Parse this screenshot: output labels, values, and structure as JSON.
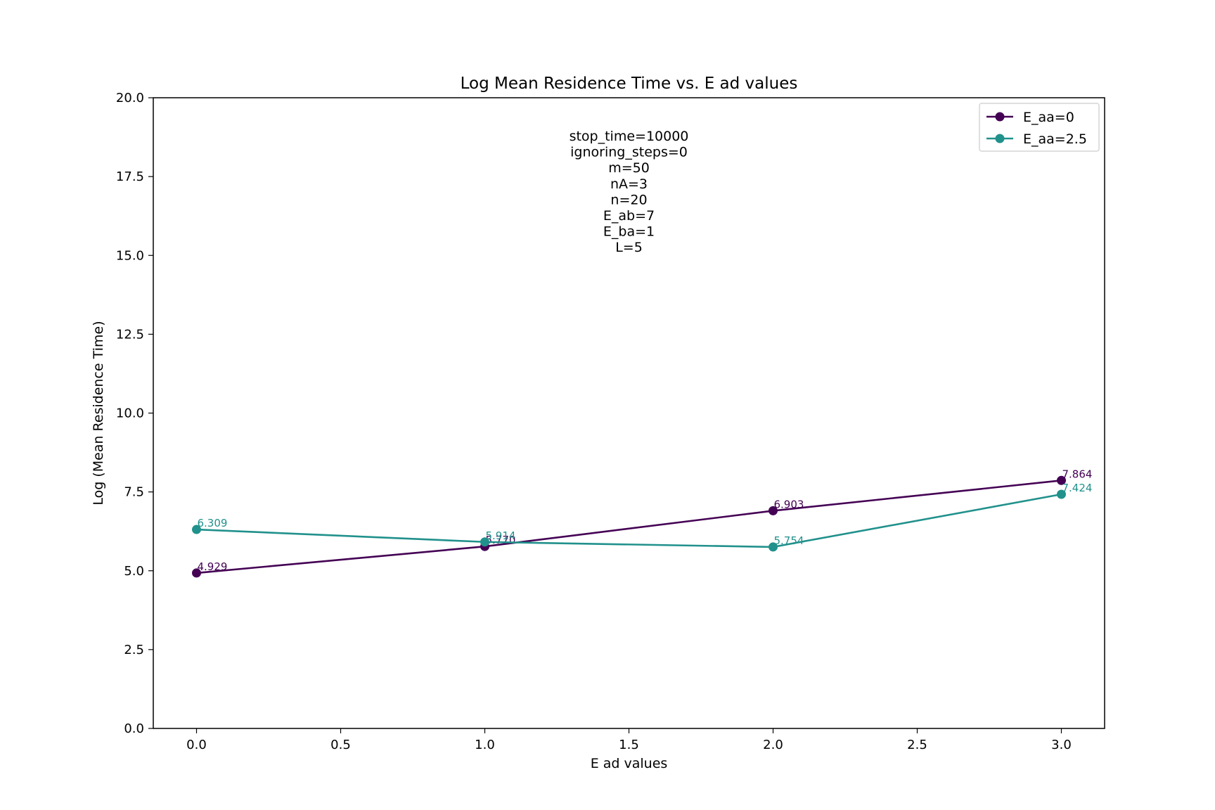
{
  "chart_data": {
    "type": "line",
    "title": "Log Mean Residence Time vs. E ad values",
    "xlabel": "E ad values",
    "ylabel": "Log (Mean Residence Time)",
    "xlim": [
      -0.15,
      3.15
    ],
    "ylim": [
      0,
      20
    ],
    "xticks": [
      0.0,
      0.5,
      1.0,
      1.5,
      2.0,
      2.5,
      3.0
    ],
    "xtick_labels": [
      "0.0",
      "0.5",
      "1.0",
      "1.5",
      "2.0",
      "2.5",
      "3.0"
    ],
    "yticks": [
      0.0,
      2.5,
      5.0,
      7.5,
      10.0,
      12.5,
      15.0,
      17.5,
      20.0
    ],
    "ytick_labels": [
      "0.0",
      "2.5",
      "5.0",
      "7.5",
      "10.0",
      "12.5",
      "15.0",
      "17.5",
      "20.0"
    ],
    "grid": false,
    "legend_position": "top-right",
    "annotation_lines": [
      "stop_time=10000",
      "ignoring_steps=0",
      "m=50",
      "nA=3",
      "n=20",
      "E_ab=7",
      "E_ba=1",
      "L=5"
    ],
    "series": [
      {
        "name": "E_aa=0",
        "color": "#440154",
        "x": [
          0,
          1,
          2,
          3
        ],
        "y": [
          4.929,
          5.77,
          6.903,
          7.864
        ],
        "labels": [
          "4.929",
          "5.770",
          "6.903",
          "7.864"
        ]
      },
      {
        "name": "E_aa=2.5",
        "color": "#21918c",
        "x": [
          0,
          1,
          2,
          3
        ],
        "y": [
          6.309,
          5.914,
          5.754,
          7.424
        ],
        "labels": [
          "6.309",
          "5.914",
          "5.754",
          "7.424"
        ]
      }
    ]
  }
}
